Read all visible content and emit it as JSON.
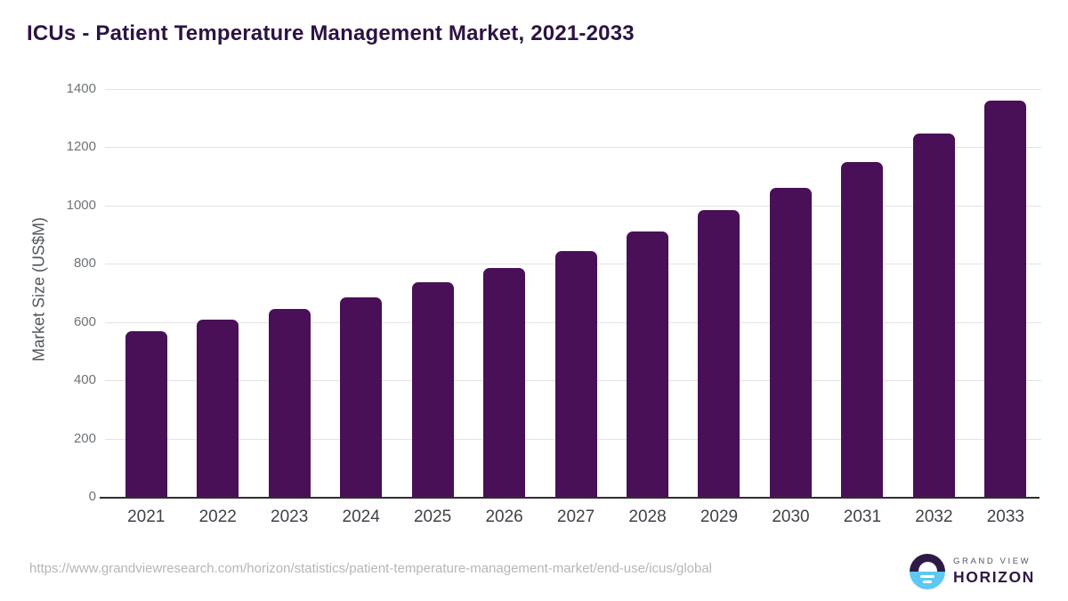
{
  "title": "ICUs - Patient Temperature Management Market, 2021-2033",
  "chart_data": {
    "type": "bar",
    "title": "ICUs - Patient Temperature Management Market, 2021-2033",
    "categories": [
      "2021",
      "2022",
      "2023",
      "2024",
      "2025",
      "2026",
      "2027",
      "2028",
      "2029",
      "2030",
      "2031",
      "2032",
      "2033"
    ],
    "values": [
      568,
      608,
      646,
      686,
      736,
      787,
      845,
      910,
      985,
      1062,
      1150,
      1248,
      1360
    ],
    "xlabel": "",
    "ylabel": "Market Size (US$M)",
    "ylim": [
      0,
      1400
    ],
    "yticks": [
      0,
      200,
      400,
      600,
      800,
      1000,
      1200,
      1400
    ],
    "grid": true,
    "legend": false,
    "bar_color": "#490f57"
  },
  "footer": {
    "source_url": "https://www.grandviewresearch.com/horizon/statistics/patient-temperature-management-market/end-use/icus/global",
    "brand_top": "GRAND VIEW",
    "brand_bottom": "HORIZON"
  },
  "colors": {
    "bar": "#490f57",
    "title": "#2d1343",
    "grid": "#e2e2e2",
    "zero_axis": "#2f2f2f",
    "y_tick": "#6f7377",
    "x_tick": "#3f4247",
    "axis_title": "#53575b",
    "url_text": "#b6b6b6",
    "logo_dark": "#2e1a47",
    "logo_blue": "#5ec8f2"
  }
}
